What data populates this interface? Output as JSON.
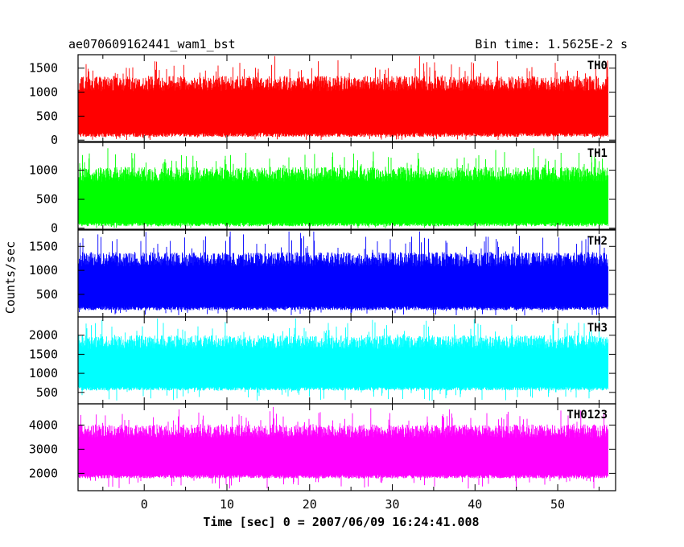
{
  "chart_data": {
    "type": "line",
    "title": "ae070609162441_wam1_bst",
    "subtitle": "Bin time: 1.5625E-2 s",
    "xlabel": "Time [sec] 0 = 2007/06/09 16:24:41.008",
    "ylabel": "Counts/sec",
    "xlim": [
      -8,
      57
    ],
    "x_ticks": [
      "0",
      "10",
      "20",
      "30",
      "40",
      "50"
    ],
    "x_tick_values": [
      0,
      10,
      20,
      30,
      40,
      50
    ],
    "x_range_data": [
      -7.9,
      56.1
    ],
    "bin_time_s": 0.015625,
    "grid": false,
    "panels": [
      {
        "name": "TH0",
        "color": "#ff0000",
        "ylim": [
          -30,
          1780
        ],
        "y_ticks": [
          0,
          500,
          1000,
          1500
        ],
        "y_tick_labels": [
          "0",
          "500",
          "1000",
          "1500"
        ],
        "band_low": 130,
        "band_high": 1180,
        "spike_min": 0,
        "spike_max": 1750,
        "spikes_up": [
          [
            -6.2,
            1450
          ],
          [
            -3.5,
            1400
          ],
          [
            -1.8,
            1500
          ],
          [
            3.6,
            1550
          ],
          [
            7.4,
            1450
          ],
          [
            12.1,
            1480
          ],
          [
            15.8,
            1750
          ],
          [
            17.6,
            1480
          ],
          [
            24.8,
            1400
          ],
          [
            29.5,
            1500
          ],
          [
            33.3,
            1750
          ],
          [
            33.8,
            1600
          ],
          [
            35.2,
            1450
          ],
          [
            40.7,
            1400
          ],
          [
            46.3,
            1500
          ],
          [
            51.2,
            1450
          ],
          [
            54.6,
            1500
          ]
        ]
      },
      {
        "name": "TH1",
        "color": "#00ff00",
        "ylim": [
          -20,
          1480
        ],
        "y_ticks": [
          0,
          500,
          1000
        ],
        "y_tick_labels": [
          "0",
          "500",
          "1000"
        ],
        "band_low": 80,
        "band_high": 930,
        "spike_min": 0,
        "spike_max": 1380,
        "spikes_up": [
          [
            -4.4,
            1380
          ],
          [
            -1.5,
            1300
          ],
          [
            5.9,
            1250
          ],
          [
            12.3,
            1300
          ],
          [
            20.6,
            1280
          ],
          [
            27.7,
            1320
          ],
          [
            33.1,
            1300
          ],
          [
            42.5,
            1350
          ],
          [
            47.1,
            1380
          ],
          [
            50.4,
            1300
          ],
          [
            54.1,
            1250
          ]
        ]
      },
      {
        "name": "TH2",
        "color": "#0000ff",
        "ylim": [
          30,
          1840
        ],
        "y_ticks": [
          500,
          1000,
          1500
        ],
        "y_tick_labels": [
          "500",
          "1000",
          "1500"
        ],
        "band_low": 230,
        "band_high": 1230,
        "spike_min": 60,
        "spike_max": 1810,
        "spikes_up": [
          [
            -5.6,
            1750
          ],
          [
            -3.3,
            1650
          ],
          [
            0.2,
            1800
          ],
          [
            10.4,
            1810
          ],
          [
            12.0,
            1750
          ],
          [
            17.5,
            1810
          ],
          [
            18.9,
            1780
          ],
          [
            20.5,
            1810
          ],
          [
            26.8,
            1700
          ],
          [
            33.3,
            1810
          ],
          [
            41.6,
            1700
          ],
          [
            48.2,
            1680
          ],
          [
            53.7,
            1720
          ]
        ]
      },
      {
        "name": "TH3",
        "color": "#00ffff",
        "ylim": [
          200,
          2480
        ],
        "y_ticks": [
          500,
          1000,
          1500,
          2000
        ],
        "y_tick_labels": [
          "500",
          "1000",
          "1500",
          "2000"
        ],
        "band_low": 620,
        "band_high": 1820,
        "spike_min": 280,
        "spike_max": 2440,
        "spikes_up": [
          [
            -5.1,
            2400
          ],
          [
            1.6,
            2440
          ],
          [
            9.8,
            2350
          ],
          [
            18.3,
            2440
          ],
          [
            27.6,
            2400
          ],
          [
            34.1,
            2380
          ],
          [
            39.9,
            2420
          ],
          [
            49.5,
            2380
          ],
          [
            55.0,
            2440
          ]
        ]
      },
      {
        "name": "TH0123",
        "color": "#ff00ff",
        "ylim": [
          1280,
          4880
        ],
        "y_ticks": [
          2000,
          3000,
          4000
        ],
        "y_tick_labels": [
          "2000",
          "3000",
          "4000"
        ],
        "band_low": 1900,
        "band_high": 3750,
        "spike_min": 1350,
        "spike_max": 4750,
        "spikes_up": [
          [
            -4.7,
            4400
          ],
          [
            4.2,
            4650
          ],
          [
            15.6,
            4750
          ],
          [
            21.1,
            4500
          ],
          [
            27.4,
            4700
          ],
          [
            36.9,
            4650
          ],
          [
            44.0,
            4550
          ],
          [
            52.8,
            4600
          ],
          [
            55.6,
            4500
          ]
        ]
      }
    ]
  }
}
